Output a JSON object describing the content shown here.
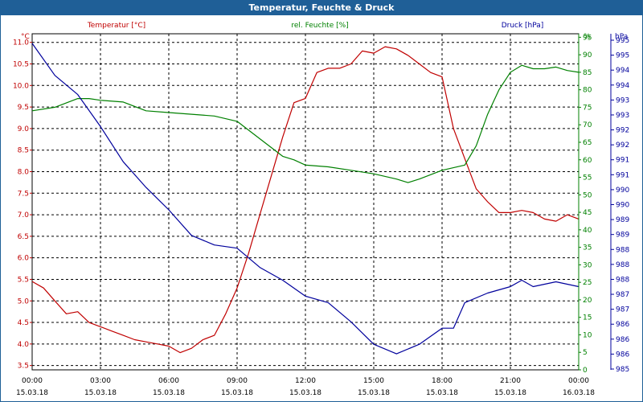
{
  "window": {
    "title": "Temperatur, Feuchte & Druck"
  },
  "colors": {
    "temperature": "#c00000",
    "humidity": "#008000",
    "pressure": "#00009c",
    "grid": "#000000",
    "titlebar": "#1f5f97"
  },
  "chart_data": {
    "type": "line",
    "title": "Temperatur, Feuchte & Druck",
    "grid": true,
    "x_range_hours": [
      0,
      24
    ],
    "x_ticks": [
      {
        "time": "00:00",
        "date": "15.03.18"
      },
      {
        "time": "03:00",
        "date": "15.03.18"
      },
      {
        "time": "06:00",
        "date": "15.03.18"
      },
      {
        "time": "09:00",
        "date": "15.03.18"
      },
      {
        "time": "12:00",
        "date": "15.03.18"
      },
      {
        "time": "15:00",
        "date": "15.03.18"
      },
      {
        "time": "18:00",
        "date": "15.03.18"
      },
      {
        "time": "21:00",
        "date": "15.03.18"
      },
      {
        "time": "00:00",
        "date": "16.03.18"
      }
    ],
    "axes": {
      "temperature": {
        "label": "Temperatur [°C]",
        "unit": "°C",
        "range": [
          3.4,
          11.2
        ],
        "ticks": [
          "3.5",
          "4.0",
          "4.5",
          "5.0",
          "5.5",
          "6.0",
          "6.5",
          "7.0",
          "7.5",
          "8.0",
          "8.5",
          "9.0",
          "9.5",
          "10.0",
          "10.5",
          "11.0"
        ]
      },
      "humidity": {
        "label": "rel. Feuchte [%]",
        "unit": "%",
        "range": [
          0,
          96
        ],
        "ticks": [
          "0",
          "5",
          "10",
          "15",
          "20",
          "25",
          "30",
          "35",
          "40",
          "45",
          "50",
          "55",
          "60",
          "65",
          "70",
          "75",
          "80",
          "85",
          "90",
          "95"
        ]
      },
      "pressure": {
        "label": "Druck [hPa]",
        "unit": "hPa",
        "range": [
          985,
          995.5
        ],
        "ticks": [
          "985",
          "986",
          "986",
          "986",
          "987",
          "987",
          "988",
          "988",
          "988",
          "989",
          "989",
          "990",
          "990",
          "991",
          "991",
          "992",
          "992",
          "993",
          "993",
          "994",
          "994",
          "995",
          "995"
        ]
      }
    },
    "series": [
      {
        "name": "Temperatur [°C]",
        "axis": "temperature",
        "x": [
          0,
          0.5,
          1,
          1.5,
          2,
          2.5,
          3,
          3.5,
          4,
          4.5,
          5,
          5.5,
          6,
          6.5,
          7,
          7.5,
          8,
          8.5,
          9,
          9.5,
          10,
          10.5,
          11,
          11.5,
          12,
          12.5,
          13,
          13.5,
          14,
          14.5,
          15,
          15.5,
          16,
          16.5,
          17,
          17.5,
          18,
          18.5,
          19,
          19.5,
          20,
          20.5,
          21,
          21.5,
          22,
          22.5,
          23,
          23.5,
          24
        ],
        "values": [
          5.45,
          5.3,
          5.0,
          4.7,
          4.75,
          4.5,
          4.4,
          4.3,
          4.2,
          4.1,
          4.05,
          4.0,
          3.95,
          3.8,
          3.9,
          4.1,
          4.2,
          4.7,
          5.3,
          6.1,
          7.0,
          7.9,
          8.8,
          9.6,
          9.7,
          10.3,
          10.4,
          10.4,
          10.5,
          10.8,
          10.75,
          10.9,
          10.85,
          10.7,
          10.5,
          10.3,
          10.2,
          9.0,
          8.3,
          7.6,
          7.3,
          7.05,
          7.05,
          7.1,
          7.05,
          6.9,
          6.85,
          7.0,
          6.9
        ]
      },
      {
        "name": "rel. Feuchte [%]",
        "axis": "humidity",
        "x": [
          0,
          1,
          2,
          2.5,
          3,
          4,
          5,
          6,
          7,
          8,
          9,
          10,
          11,
          11.5,
          12,
          13,
          14,
          15,
          16,
          16.5,
          17,
          18,
          19,
          19.5,
          20,
          20.5,
          21,
          21.5,
          22,
          22.5,
          23,
          23.5,
          24
        ],
        "values": [
          74,
          75,
          77.5,
          77.5,
          77,
          76.5,
          74,
          73.5,
          73,
          72.5,
          71,
          66,
          61,
          60,
          58.5,
          58,
          57,
          56,
          54.5,
          53.5,
          54.5,
          57,
          58.5,
          64,
          73,
          80,
          85,
          87,
          86,
          86,
          86.5,
          85.5,
          85
        ]
      },
      {
        "name": "Druck [hPa]",
        "axis": "pressure",
        "x": [
          0,
          1,
          2,
          3,
          4,
          5,
          6,
          7,
          8,
          9,
          10,
          11,
          12,
          13,
          14,
          15,
          16,
          17,
          18,
          18.5,
          19,
          20,
          21,
          21.5,
          22,
          23,
          24
        ],
        "values": [
          995.2,
          994.2,
          993.6,
          992.6,
          991.5,
          990.7,
          990,
          989.2,
          988.9,
          988.8,
          988.2,
          987.8,
          987.3,
          987.1,
          986.5,
          985.8,
          985.5,
          985.8,
          986.3,
          986.3,
          987.1,
          987.4,
          987.6,
          987.8,
          987.6,
          987.75,
          987.6
        ]
      }
    ]
  }
}
